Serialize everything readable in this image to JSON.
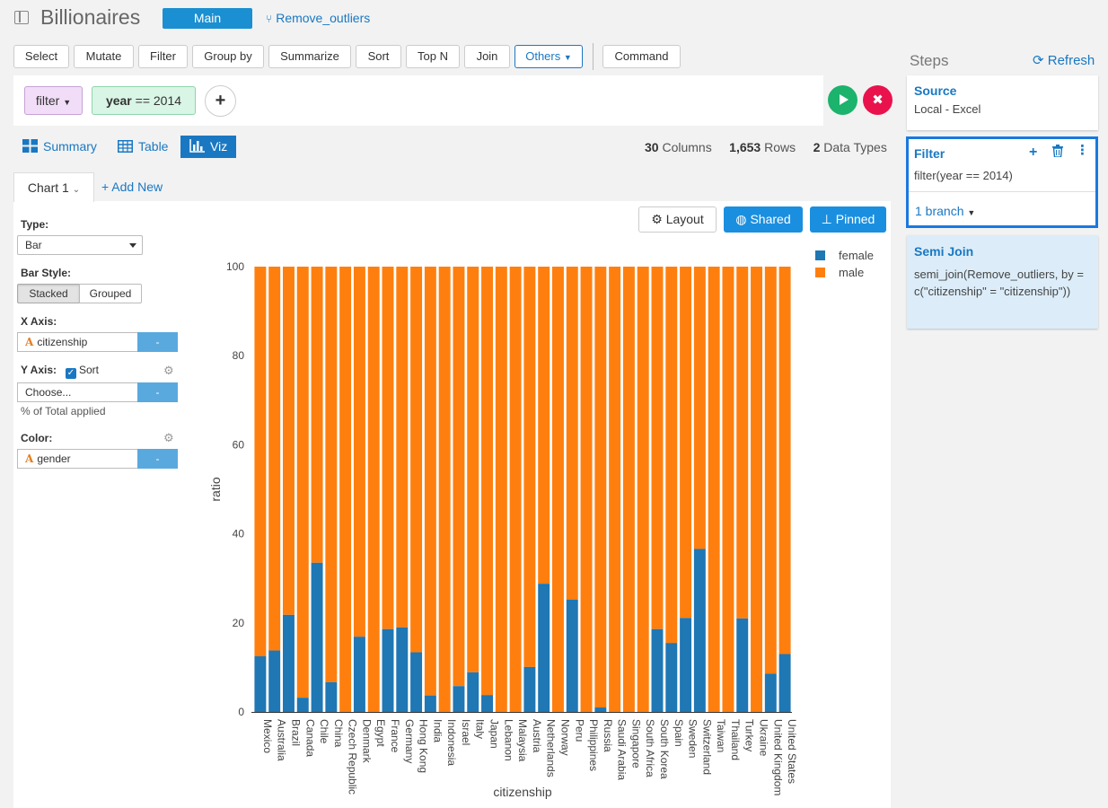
{
  "header": {
    "title": "Billionaires",
    "branch_main": "Main",
    "branch_other": "Remove_outliers"
  },
  "toolbar": {
    "buttons": [
      "Select",
      "Mutate",
      "Filter",
      "Group by",
      "Summarize",
      "Sort",
      "Top N",
      "Join"
    ],
    "others": "Others",
    "command": "Command"
  },
  "filter": {
    "type": "filter",
    "field": "year",
    "op_value": "== 2014"
  },
  "view_tabs": {
    "summary": "Summary",
    "table": "Table",
    "viz": "Viz"
  },
  "stats": {
    "columns_num": "30",
    "columns_lbl": "Columns",
    "rows_num": "1,653",
    "rows_lbl": "Rows",
    "types_num": "2",
    "types_lbl": "Data Types"
  },
  "chart_tabs": {
    "current": "Chart 1",
    "add_new": "+ Add New"
  },
  "config": {
    "type_label": "Type:",
    "type_value": "Bar",
    "bar_style_label": "Bar Style:",
    "stacked": "Stacked",
    "grouped": "Grouped",
    "x_axis_label": "X Axis:",
    "x_axis_value": "citizenship",
    "y_axis_label": "Y Axis:",
    "sort_label": "Sort",
    "y_axis_value": "Choose...",
    "pct_note": "% of Total applied",
    "color_label": "Color:",
    "color_value": "gender",
    "minus": "-"
  },
  "chart_buttons": {
    "layout": "Layout",
    "shared": "Shared",
    "pinned": "Pinned"
  },
  "chart_data": {
    "type": "bar",
    "stacked": true,
    "xlabel": "citizenship",
    "ylabel": "ratio",
    "ylim": [
      0,
      100
    ],
    "yticks": [
      0,
      20,
      40,
      60,
      80,
      100
    ],
    "categories": [
      "Mexico",
      "Australia",
      "Brazil",
      "Canada",
      "Chile",
      "China",
      "Czech Republic",
      "Denmark",
      "Egypt",
      "France",
      "Germany",
      "Hong Kong",
      "India",
      "Indonesia",
      "Israel",
      "Italy",
      "Japan",
      "Lebanon",
      "Malaysia",
      "Austria",
      "Netherlands",
      "Norway",
      "Peru",
      "Philippines",
      "Russia",
      "Saudi Arabia",
      "Singapore",
      "South Africa",
      "South Korea",
      "Spain",
      "Sweden",
      "Switzerland",
      "Taiwan",
      "Thailand",
      "Turkey",
      "Ukraine",
      "United Kingdom",
      "United States"
    ],
    "series": [
      {
        "name": "female",
        "color": "#1f77b4",
        "values": [
          12.5,
          13.8,
          21.8,
          3.2,
          33.5,
          6.7,
          0,
          16.9,
          0,
          18.6,
          19,
          13.4,
          3.7,
          0,
          5.8,
          8.9,
          3.8,
          0,
          0,
          10.1,
          28.8,
          0,
          25.2,
          0,
          1,
          0,
          0,
          0,
          18.6,
          15.5,
          21.1,
          36.6,
          0,
          0,
          21,
          0,
          8.6,
          13
        ]
      },
      {
        "name": "male",
        "color": "#ff7f0e",
        "values": [
          87.5,
          86.2,
          78.2,
          96.8,
          66.5,
          93.3,
          100,
          83.1,
          100,
          81.4,
          81,
          86.6,
          96.3,
          100,
          94.2,
          91.1,
          96.2,
          100,
          100,
          89.9,
          71.2,
          100,
          74.8,
          100,
          99,
          100,
          100,
          100,
          81.4,
          84.5,
          78.9,
          63.4,
          100,
          100,
          79,
          100,
          91.4,
          87
        ]
      }
    ],
    "legend_position": "top-right"
  },
  "steps": {
    "title": "Steps",
    "refresh": "Refresh",
    "source_title": "Source",
    "source_sub": "Local - Excel",
    "filter_title": "Filter",
    "filter_sub": "filter(year == 2014)",
    "filter_branch": "1 branch",
    "semi_title": "Semi Join",
    "semi_sub": "semi_join(Remove_outliers, by = c(\"citizenship\" = \"citizenship\"))"
  },
  "colors": {
    "accent": "#1a78c2",
    "run": "#1cb36c",
    "cancel": "#e9124d"
  }
}
